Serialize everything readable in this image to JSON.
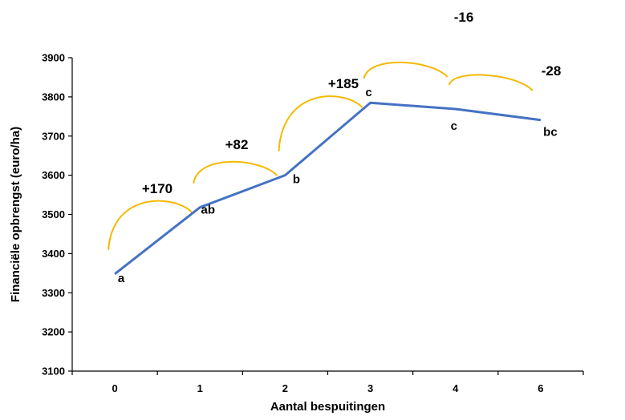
{
  "chart_data": {
    "type": "line",
    "xlabel": "Aantal bespuitingen",
    "ylabel": "Financiële opbrengst (euro/ha)",
    "ylim": [
      3100,
      3900
    ],
    "yticks": [
      3100,
      3200,
      3300,
      3400,
      3500,
      3600,
      3700,
      3800,
      3900
    ],
    "categories": [
      "0",
      "1",
      "2",
      "3",
      "4",
      "6"
    ],
    "values": [
      3348,
      3518,
      3600,
      3785,
      3769,
      3741
    ],
    "point_labels": [
      "a",
      "ab",
      "b",
      "c",
      "c",
      "bc"
    ],
    "differences": [
      "+170",
      "+82",
      "+185",
      "-16",
      "-28"
    ],
    "grid": false,
    "line_color": "#4472C4",
    "arc_color": "#F5B800"
  }
}
